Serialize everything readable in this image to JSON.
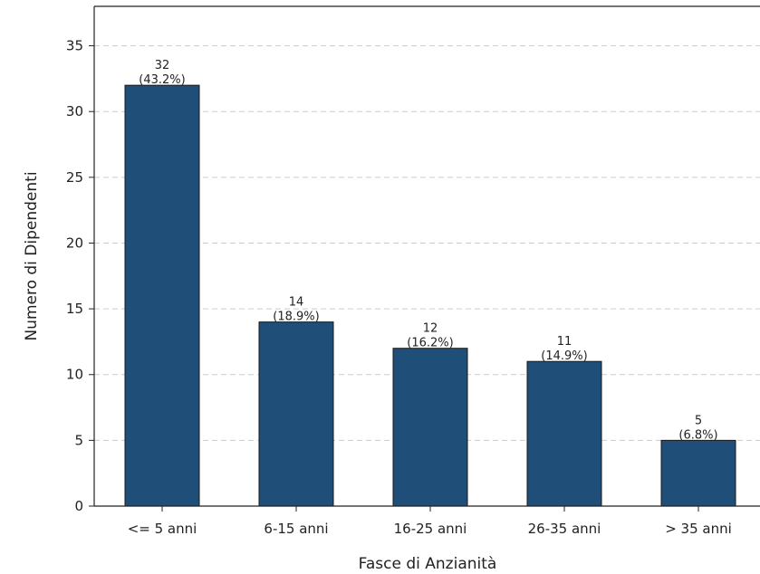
{
  "chart_data": {
    "type": "bar",
    "title": "",
    "xlabel": "Fasce di Anzianità",
    "ylabel": "Numero di Dipendenti",
    "categories": [
      "<= 5 anni",
      "6-15 anni",
      "16-25 anni",
      "26-35 anni",
      "> 35 anni"
    ],
    "values": [
      32,
      14,
      12,
      11,
      5
    ],
    "percent_labels": [
      "(43.2%)",
      "(18.9%)",
      "(16.2%)",
      "(14.9%)",
      "(6.8%)"
    ],
    "ylim": [
      0,
      38
    ],
    "yticks": [
      0,
      5,
      10,
      15,
      20,
      25,
      30,
      35
    ],
    "grid": "y-dashed",
    "bar_color": "#1f4e79",
    "grid_color": "#cccccc"
  }
}
